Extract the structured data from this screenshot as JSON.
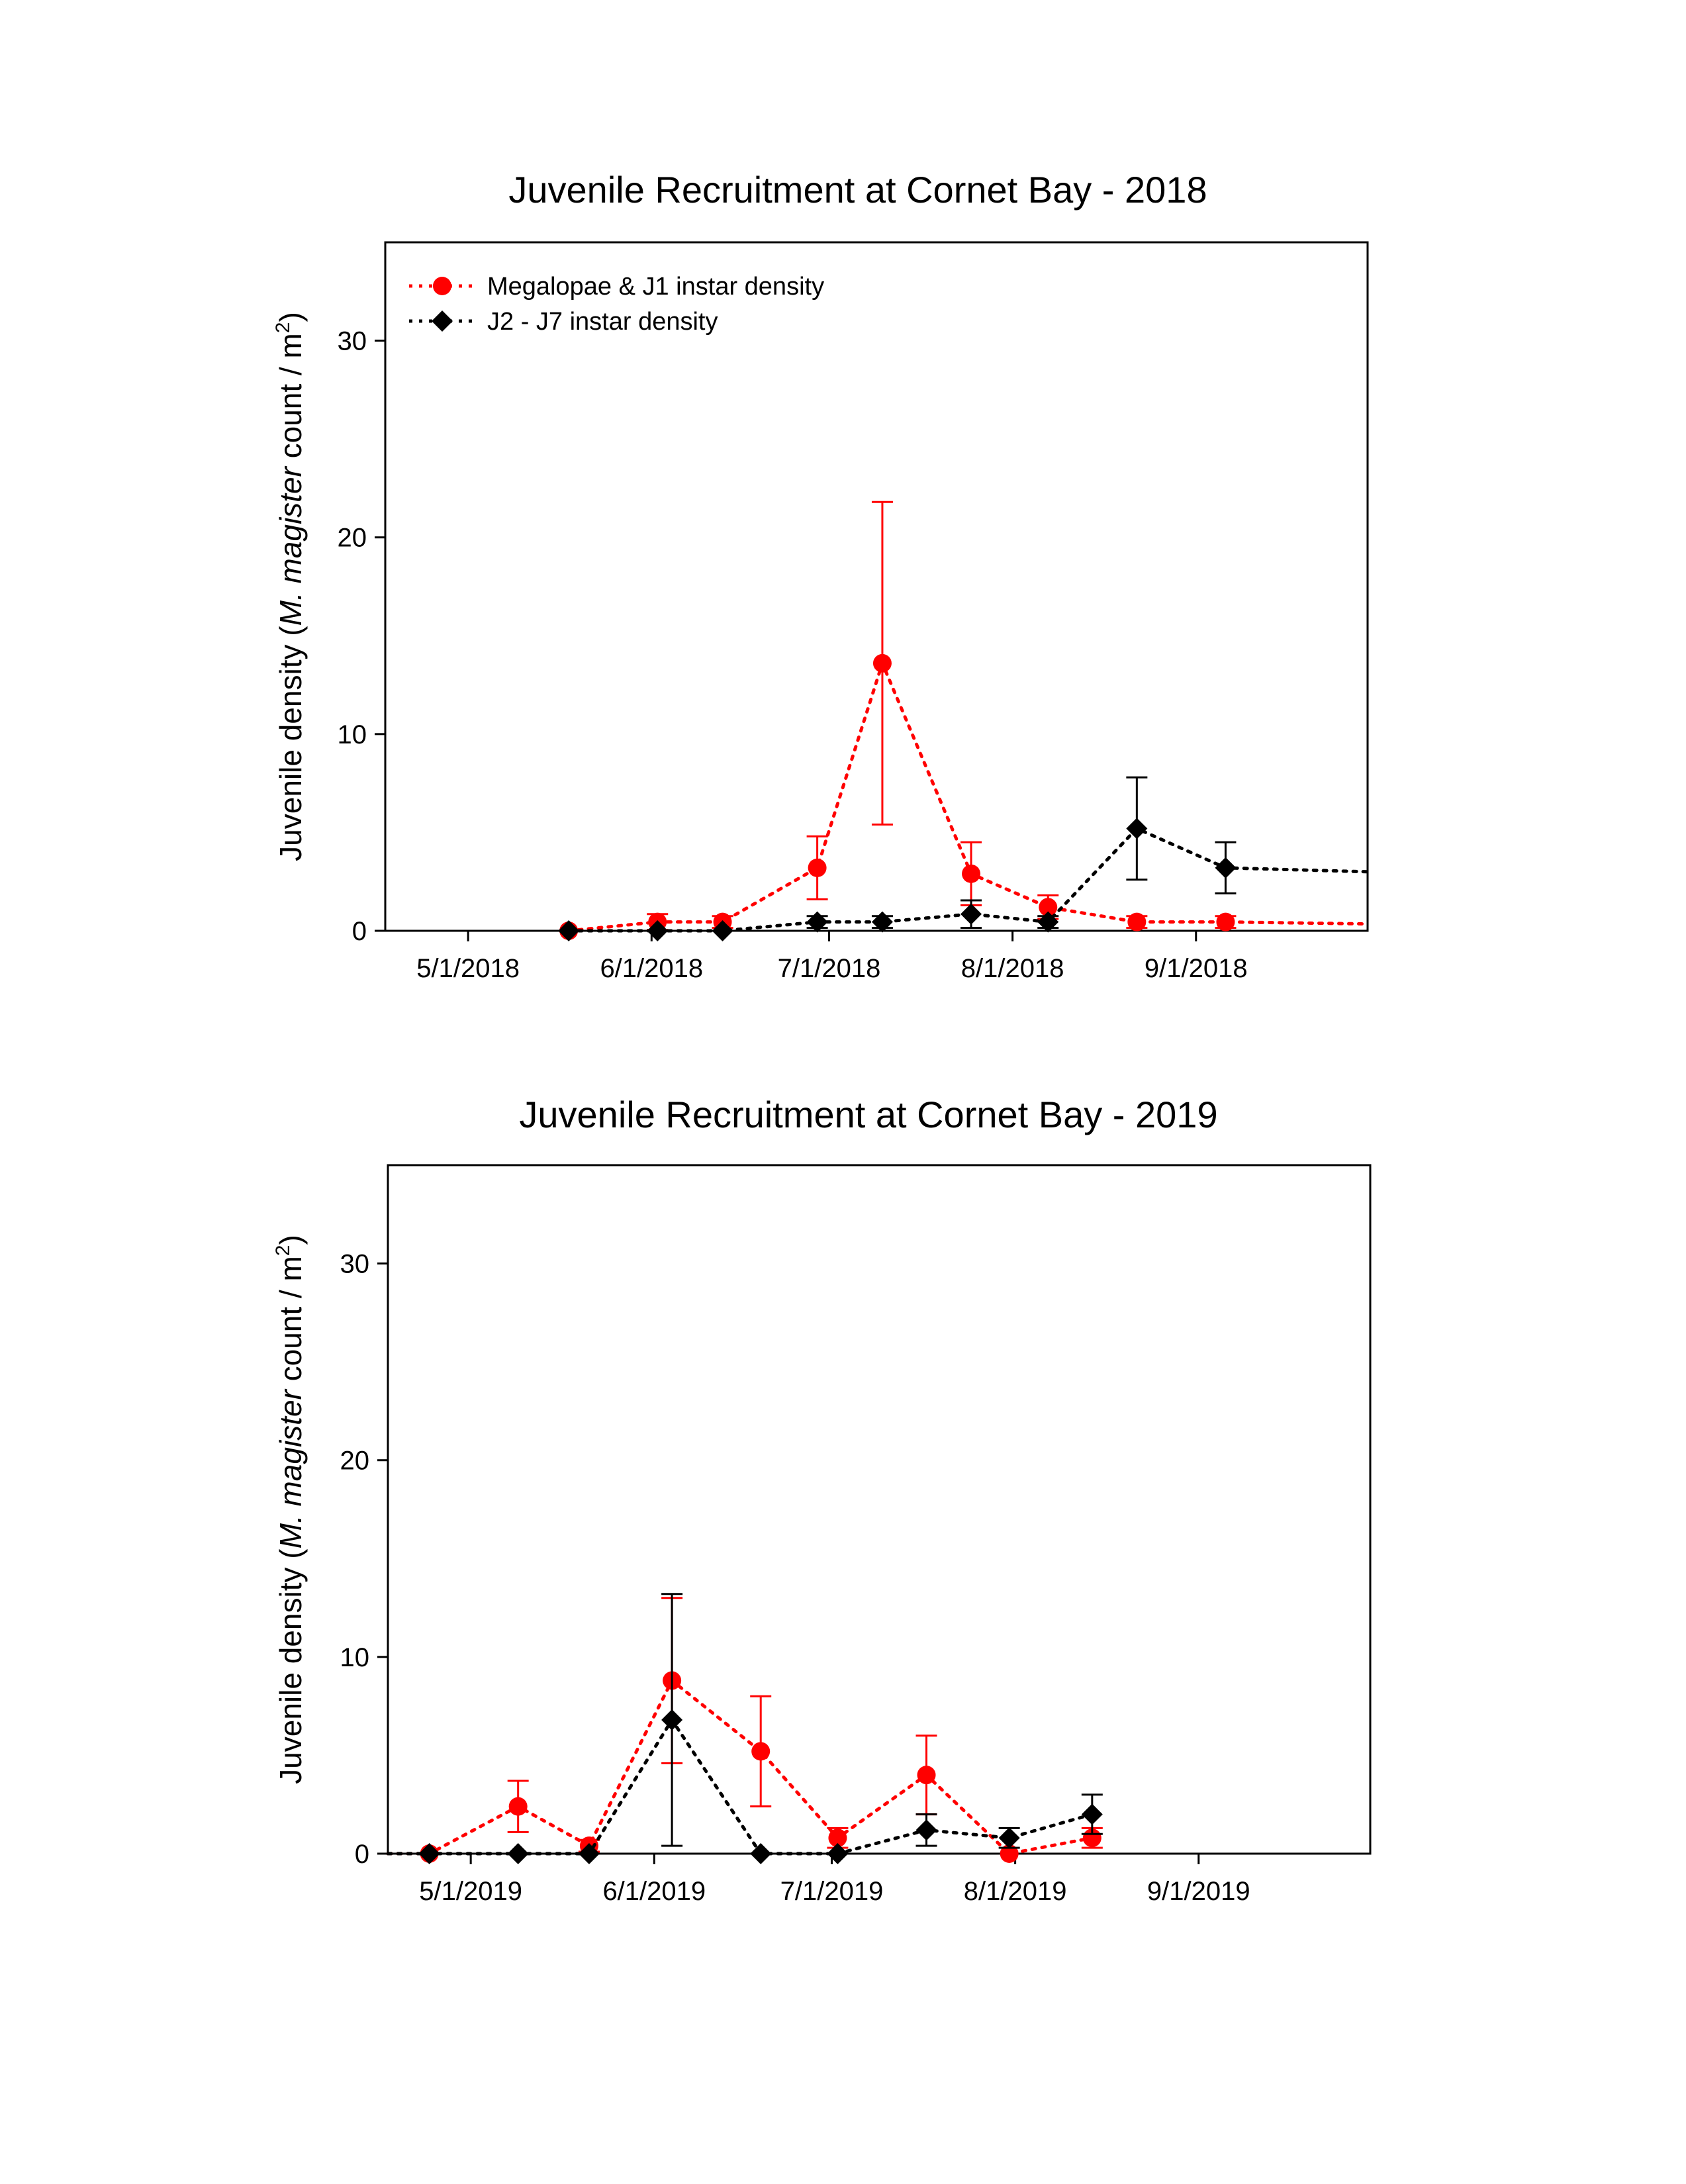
{
  "colors": {
    "megalopae": "#ff0000",
    "juvenile": "#000000"
  },
  "chart_data": [
    {
      "type": "line",
      "title": "Juvenile Recruitment at Cornet Bay - 2018",
      "ylabel": {
        "prefix": "Juvenile density (",
        "italic": "M. magister",
        "mid": " count / m",
        "sup": "2",
        "suffix": ")"
      },
      "xlabel": "",
      "xlim": [
        "2018-04-17",
        "2018-09-30"
      ],
      "ylim": [
        0,
        35
      ],
      "y_ticks": [
        0,
        10,
        20,
        30
      ],
      "x_ticks": [
        {
          "date": "2018-05-01",
          "label": "5/1/2018"
        },
        {
          "date": "2018-06-01",
          "label": "6/1/2018"
        },
        {
          "date": "2018-07-01",
          "label": "7/1/2018"
        },
        {
          "date": "2018-08-01",
          "label": "8/1/2018"
        },
        {
          "date": "2018-09-01",
          "label": "9/1/2018"
        }
      ],
      "grid": false,
      "legend": {
        "placement": "top-left",
        "entries": [
          "Megalopae & J1 instar density",
          "J2 - J7 instar density"
        ]
      },
      "series": [
        {
          "name": "Megalopae & J1 instar density",
          "marker": "circle",
          "color": "#ff0000",
          "x": [
            "2018-05-18",
            "2018-06-02",
            "2018-06-13",
            "2018-06-29",
            "2018-07-10",
            "2018-07-25",
            "2018-08-07",
            "2018-08-22",
            "2018-09-06"
          ],
          "y": [
            0.0,
            0.45,
            0.45,
            3.2,
            13.6,
            2.9,
            1.2,
            0.45,
            0.45
          ],
          "err": [
            0.0,
            0.4,
            0.3,
            1.6,
            8.2,
            1.6,
            0.6,
            0.3,
            0.3
          ],
          "trail_to": {
            "x": "2018-09-30",
            "y": 0.35
          }
        },
        {
          "name": "J2 - J7 instar density",
          "marker": "diamond",
          "color": "#000000",
          "x": [
            "2018-05-18",
            "2018-06-02",
            "2018-06-13",
            "2018-06-29",
            "2018-07-10",
            "2018-07-25",
            "2018-08-07",
            "2018-08-22",
            "2018-09-06"
          ],
          "y": [
            0.0,
            0.0,
            0.0,
            0.45,
            0.45,
            0.85,
            0.45,
            5.2,
            3.2
          ],
          "err": [
            0.0,
            0.0,
            0.0,
            0.3,
            0.3,
            0.7,
            0.3,
            2.6,
            1.3
          ],
          "trail_to": {
            "x": "2018-09-30",
            "y": 3.0
          }
        }
      ]
    },
    {
      "type": "line",
      "title": "Juvenile Recruitment at Cornet Bay - 2019",
      "ylabel": {
        "prefix": "Juvenile density (",
        "italic": "M. magister",
        "mid": " count / m",
        "sup": "2",
        "suffix": ")"
      },
      "xlabel": "",
      "xlim": [
        "2019-04-17",
        "2019-09-30"
      ],
      "ylim": [
        0,
        35
      ],
      "y_ticks": [
        0,
        10,
        20,
        30
      ],
      "x_ticks": [
        {
          "date": "2019-05-01",
          "label": "5/1/2019"
        },
        {
          "date": "2019-06-01",
          "label": "6/1/2019"
        },
        {
          "date": "2019-07-01",
          "label": "7/1/2019"
        },
        {
          "date": "2019-08-01",
          "label": "8/1/2019"
        },
        {
          "date": "2019-09-01",
          "label": "9/1/2019"
        }
      ],
      "grid": false,
      "legend": null,
      "series": [
        {
          "name": "Megalopae & J1 instar density",
          "marker": "circle",
          "color": "#ff0000",
          "x": [
            "2019-04-24",
            "2019-05-09",
            "2019-05-21",
            "2019-06-04",
            "2019-06-19",
            "2019-07-02",
            "2019-07-17",
            "2019-07-31",
            "2019-08-14"
          ],
          "y": [
            0.0,
            2.4,
            0.4,
            8.8,
            5.2,
            0.8,
            4.0,
            0.0,
            0.8
          ],
          "err": [
            0.0,
            1.3,
            0.3,
            4.2,
            2.8,
            0.5,
            2.0,
            0.0,
            0.5
          ],
          "lead_from": {
            "x": "2019-04-17",
            "y": 0.0
          }
        },
        {
          "name": "J2 - J7 instar density",
          "marker": "diamond",
          "color": "#000000",
          "x": [
            "2019-04-24",
            "2019-05-09",
            "2019-05-21",
            "2019-06-04",
            "2019-06-19",
            "2019-07-02",
            "2019-07-17",
            "2019-07-31",
            "2019-08-14"
          ],
          "y": [
            0.0,
            0.0,
            0.0,
            6.8,
            0.0,
            0.0,
            1.2,
            0.8,
            2.0
          ],
          "err": [
            0.0,
            0.0,
            0.0,
            6.4,
            0.0,
            0.0,
            0.8,
            0.5,
            1.0
          ],
          "lead_from": {
            "x": "2019-04-17",
            "y": 0.0
          }
        }
      ]
    }
  ]
}
